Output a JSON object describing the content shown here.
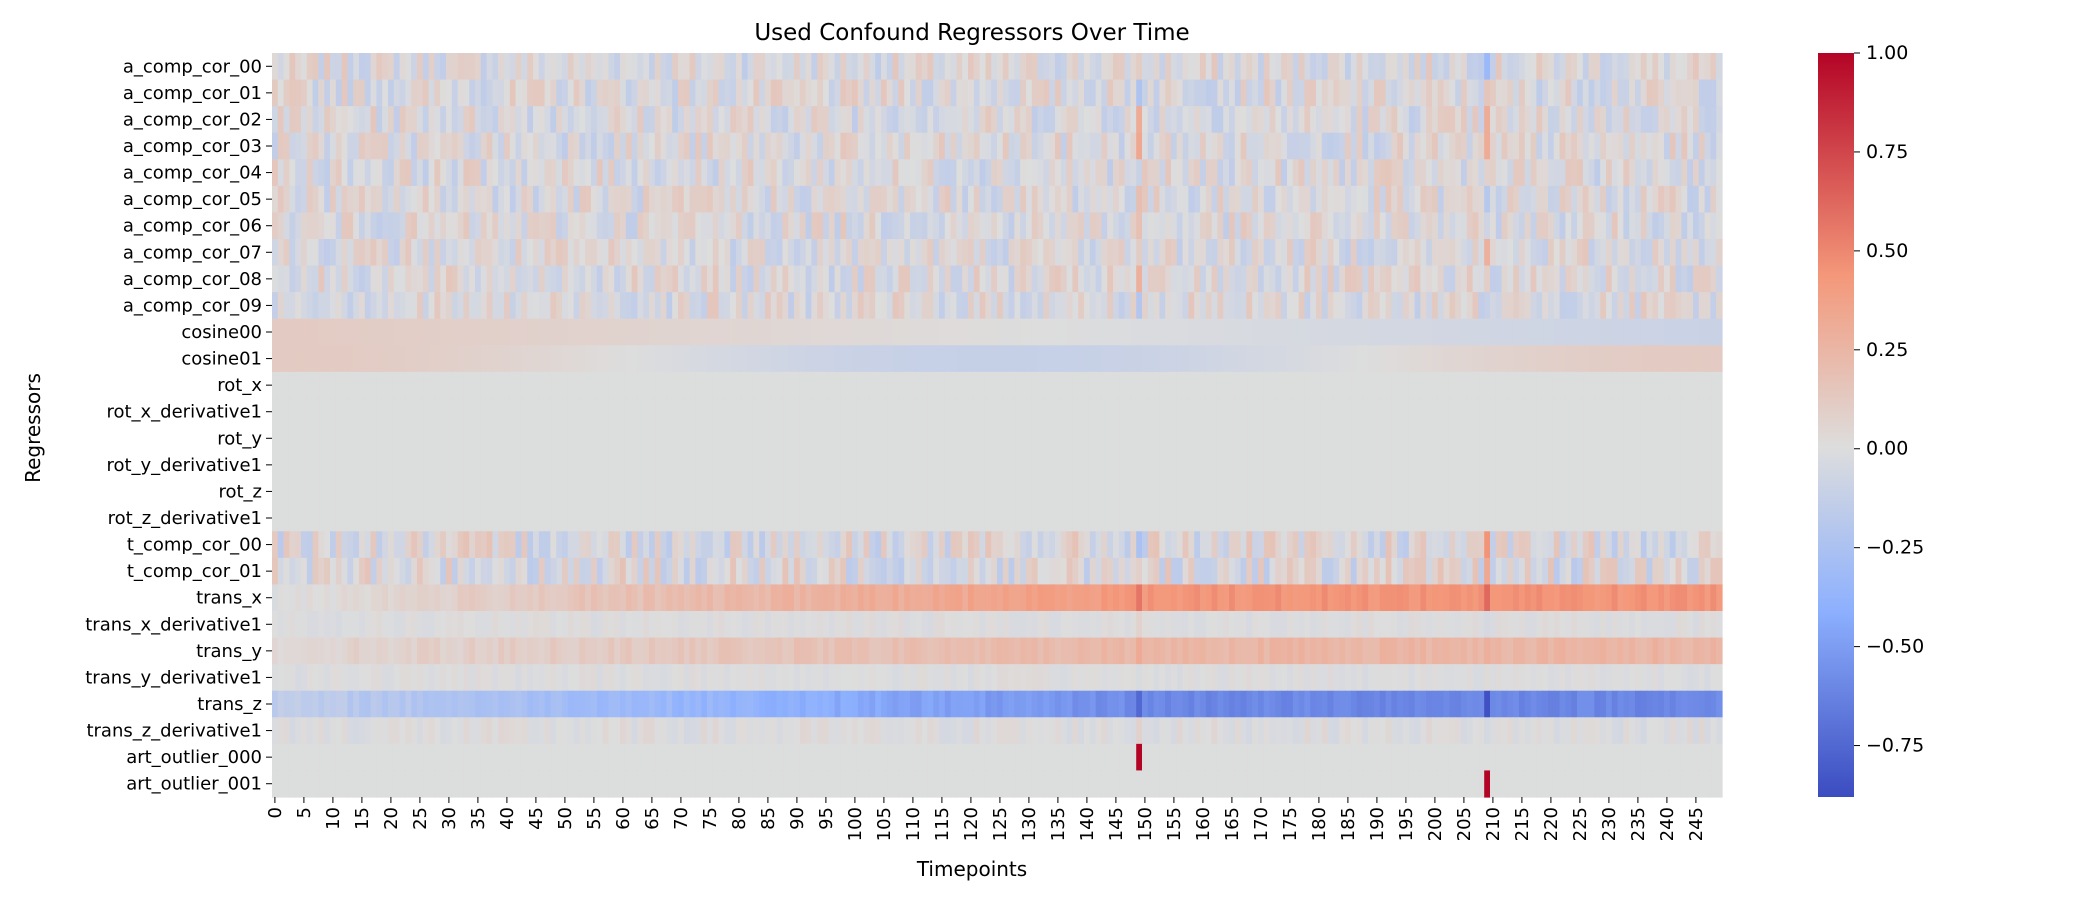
{
  "chart_data": {
    "type": "heatmap",
    "title": "Used Confound Regressors Over Time",
    "xlabel": "Timepoints",
    "ylabel": "Regressors",
    "x_start": 0,
    "x_end": 249,
    "x_tick_step": 5,
    "rows": [
      "a_comp_cor_00",
      "a_comp_cor_01",
      "a_comp_cor_02",
      "a_comp_cor_03",
      "a_comp_cor_04",
      "a_comp_cor_05",
      "a_comp_cor_06",
      "a_comp_cor_07",
      "a_comp_cor_08",
      "a_comp_cor_09",
      "cosine00",
      "cosine01",
      "rot_x",
      "rot_x_derivative1",
      "rot_y",
      "rot_y_derivative1",
      "rot_z",
      "rot_z_derivative1",
      "t_comp_cor_00",
      "t_comp_cor_01",
      "trans_x",
      "trans_x_derivative1",
      "trans_y",
      "trans_y_derivative1",
      "trans_z",
      "trans_z_derivative1",
      "art_outlier_000",
      "art_outlier_001"
    ],
    "colorbar": {
      "colormap": "coolwarm",
      "vmin": -0.88,
      "vmax": 1.0,
      "ticks": [
        "1.00",
        "0.75",
        "0.50",
        "0.25",
        "0.00",
        "−0.25",
        "−0.50",
        "−0.75"
      ],
      "tick_values": [
        1.0,
        0.75,
        0.5,
        0.25,
        0.0,
        -0.25,
        -0.5,
        -0.75
      ]
    },
    "series_profiles": {
      "a_comp_cor": {
        "kind": "noise",
        "amplitude": 0.15
      },
      "cosine00": {
        "kind": "linear",
        "from": 0.12,
        "to": -0.1
      },
      "cosine01": {
        "kind": "cosine",
        "amplitude": 0.12
      },
      "rot": {
        "kind": "constant",
        "value": 0.0
      },
      "t_comp_cor": {
        "kind": "noise",
        "amplitude": 0.18
      },
      "trans_x": {
        "kind": "ramp",
        "from": 0.0,
        "to": 0.45
      },
      "trans_x_derivative1": {
        "kind": "noise",
        "amplitude": 0.03
      },
      "trans_y": {
        "kind": "ramp",
        "from": 0.05,
        "to": 0.25
      },
      "trans_y_derivative1": {
        "kind": "noise",
        "amplitude": 0.03
      },
      "trans_z": {
        "kind": "ramp",
        "from": -0.15,
        "to": -0.6
      },
      "trans_z_derivative1": {
        "kind": "noise",
        "amplitude": 0.05
      },
      "art_outlier_000": {
        "kind": "spike",
        "at": 149,
        "value": 1.0
      },
      "art_outlier_001": {
        "kind": "spike",
        "at": 209,
        "value": 1.0
      }
    }
  }
}
